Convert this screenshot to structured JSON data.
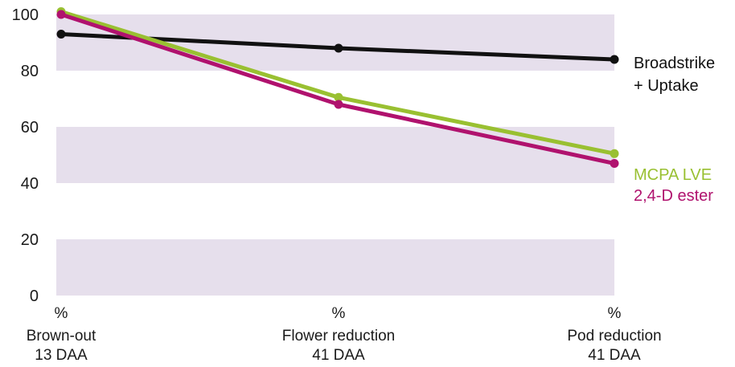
{
  "chart_data": {
    "type": "line",
    "title": "",
    "xlabel": "",
    "ylabel": "",
    "ylim": [
      0,
      100
    ],
    "yticks": [
      "0",
      "20",
      "40",
      "60",
      "80",
      "100"
    ],
    "grid": "alternating horizontal bands",
    "band_color": "#e6dfec",
    "categories": [
      {
        "unit": "%",
        "line1": "Brown-out",
        "line2": "13 DAA"
      },
      {
        "unit": "%",
        "line1": "Flower reduction",
        "line2": "41 DAA"
      },
      {
        "unit": "%",
        "line1": "Pod reduction",
        "line2": "41 DAA"
      }
    ],
    "series": [
      {
        "name_lines": [
          "Broadstrike",
          "+ Uptake"
        ],
        "color": "#111111",
        "values": [
          93,
          88,
          84
        ]
      },
      {
        "name_lines": [
          "MCPA LVE"
        ],
        "color": "#99c031",
        "values": [
          101,
          70.5,
          50.5
        ]
      },
      {
        "name_lines": [
          "2,4-D ester"
        ],
        "color": "#b0126e",
        "values": [
          100,
          68,
          47
        ]
      }
    ]
  }
}
